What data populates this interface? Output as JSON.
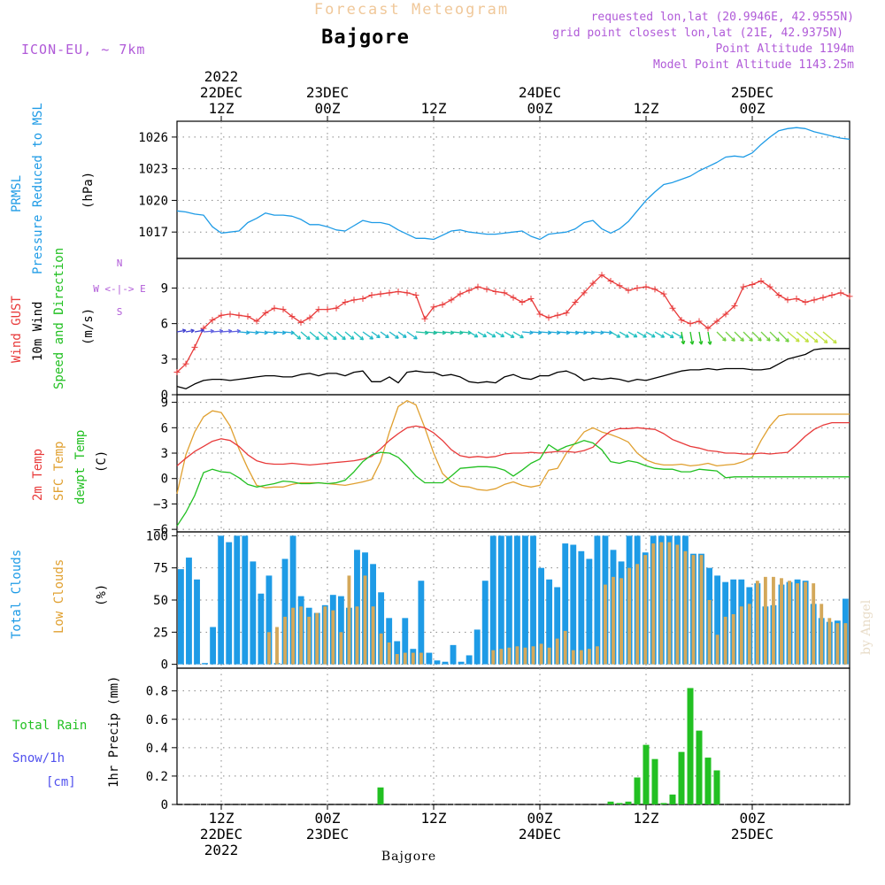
{
  "header": {
    "title_ghost": "Forecast Meteogram",
    "station": "Bajgore",
    "model": "ICON-EU, ~ 7km",
    "requested": "requested lon,lat (20.9946E, 42.9555N)",
    "grid_point": "grid point closest lon,lat (21E, 42.9375N)",
    "point_alt": "Point Altitude 1194m",
    "model_alt": "Model Point Altitude 1143.25m",
    "footer_station": "Bajgore",
    "credit": "by Angel"
  },
  "time_axis": {
    "top_labels": [
      {
        "t": 0,
        "lines": [
          "2022",
          "22DEC",
          "12Z"
        ]
      },
      {
        "t": 12,
        "lines": [
          "23DEC",
          "00Z"
        ]
      },
      {
        "t": 24,
        "lines": [
          "12Z"
        ]
      },
      {
        "t": 36,
        "lines": [
          "24DEC",
          "00Z"
        ]
      },
      {
        "t": 48,
        "lines": [
          "12Z"
        ]
      },
      {
        "t": 60,
        "lines": [
          "25DEC",
          "00Z"
        ]
      }
    ],
    "bottom_labels": [
      {
        "t": 0,
        "lines": [
          "12Z",
          "22DEC",
          "2022"
        ]
      },
      {
        "t": 12,
        "lines": [
          "00Z",
          "23DEC"
        ]
      },
      {
        "t": 24,
        "lines": [
          "12Z"
        ]
      },
      {
        "t": 36,
        "lines": [
          "00Z",
          "24DEC"
        ]
      },
      {
        "t": 48,
        "lines": [
          "12Z"
        ]
      },
      {
        "t": 60,
        "lines": [
          "00Z",
          "25DEC"
        ]
      }
    ],
    "range_hours": [
      -5,
      71
    ]
  },
  "labels": {
    "prmsl": [
      "PRMSL",
      "Pressure Reduced to MSL",
      "(hPa)"
    ],
    "wind": [
      "Wind GUST",
      "10m Wind",
      "Speed and Direction",
      "(m/s)"
    ],
    "compass": [
      "N",
      "W <-|-> E",
      "S"
    ],
    "temp": [
      "2m Temp",
      "SFC Temp",
      "dewpt Temp",
      "(C)"
    ],
    "cloud": [
      "Total Clouds",
      "Low Clouds",
      "(%)"
    ],
    "precip": [
      "Total  Rain",
      "Snow/1h",
      "[cm]",
      "1hr Precip (mm)"
    ]
  },
  "colors": {
    "pressure": "#1e9be6",
    "gust": "#e83a3a",
    "wind": "#000000",
    "temp2m": "#e83a3a",
    "sfc": "#e0a030",
    "dew": "#22c022",
    "total_cloud": "#1e9be6",
    "low_cloud": "#d4a85a",
    "rain": "#22c022",
    "snow": "#5050ee",
    "label_purple": "#b05ad8",
    "ghost": "#f0c89a",
    "grid": "#888888"
  },
  "chart_data": [
    {
      "type": "line",
      "id": "pressure",
      "ylabel": "(hPa)",
      "ylim": [
        1014.5,
        1027.5
      ],
      "yticks": [
        1017,
        1020,
        1023,
        1026
      ],
      "x": [
        -5,
        -4,
        -3,
        -2,
        -1,
        0,
        1,
        2,
        3,
        4,
        5,
        6,
        7,
        8,
        9,
        10,
        11,
        12,
        13,
        14,
        15,
        16,
        17,
        18,
        19,
        20,
        21,
        22,
        23,
        24,
        25,
        26,
        27,
        28,
        29,
        30,
        31,
        32,
        33,
        34,
        35,
        36,
        37,
        38,
        39,
        40,
        41,
        42,
        43,
        44,
        45,
        46,
        47,
        48,
        49,
        50,
        51,
        52,
        53,
        54,
        55,
        56,
        57,
        58,
        59,
        60,
        61,
        62,
        63,
        64,
        65,
        66,
        67,
        68,
        69,
        70,
        71
      ],
      "y": [
        1019.0,
        1018.9,
        1018.7,
        1018.6,
        1017.5,
        1016.9,
        1017.0,
        1017.1,
        1017.9,
        1018.3,
        1018.8,
        1018.6,
        1018.6,
        1018.5,
        1018.2,
        1017.7,
        1017.7,
        1017.5,
        1017.2,
        1017.1,
        1017.6,
        1018.1,
        1017.9,
        1017.9,
        1017.7,
        1017.2,
        1016.8,
        1016.4,
        1016.4,
        1016.3,
        1016.7,
        1017.1,
        1017.2,
        1017.0,
        1016.9,
        1016.8,
        1016.8,
        1016.9,
        1017.0,
        1017.1,
        1016.6,
        1016.3,
        1016.8,
        1016.9,
        1017.0,
        1017.3,
        1017.9,
        1018.1,
        1017.3,
        1016.9,
        1017.3,
        1018.0,
        1019.0,
        1020.0,
        1020.8,
        1021.5,
        1021.7,
        1022.0,
        1022.3,
        1022.8,
        1023.2,
        1023.6,
        1024.1,
        1024.2,
        1024.1,
        1024.5,
        1025.3,
        1026.0,
        1026.6,
        1026.8,
        1026.9,
        1026.8,
        1026.5,
        1026.3,
        1026.1,
        1025.9,
        1025.8
      ]
    },
    {
      "type": "line",
      "id": "wind",
      "ylabel": "(m/s)",
      "ylim": [
        0,
        11.5
      ],
      "yticks": [
        0,
        3,
        6,
        9
      ],
      "series": [
        {
          "name": "Wind GUST",
          "values": [
            1.9,
            2.6,
            4.0,
            5.6,
            6.3,
            6.7,
            6.8,
            6.7,
            6.6,
            6.2,
            6.9,
            7.3,
            7.2,
            6.6,
            6.1,
            6.5,
            7.2,
            7.2,
            7.3,
            7.8,
            8.0,
            8.1,
            8.4,
            8.5,
            8.6,
            8.7,
            8.6,
            8.4,
            6.4,
            7.4,
            7.6,
            8.0,
            8.5,
            8.8,
            9.1,
            8.9,
            8.7,
            8.6,
            8.2,
            7.8,
            8.1,
            6.8,
            6.5,
            6.7,
            6.9,
            7.8,
            8.6,
            9.4,
            10.1,
            9.6,
            9.2,
            8.8,
            9.0,
            9.1,
            8.9,
            8.5,
            7.3,
            6.3,
            6.0,
            6.2,
            5.6,
            6.2,
            6.8,
            7.5,
            9.1,
            9.3,
            9.6,
            9.1,
            8.4,
            8.0,
            8.1,
            7.8,
            8.0,
            8.2,
            8.4,
            8.6,
            8.3
          ]
        },
        {
          "name": "10m Wind",
          "values": [
            0.7,
            0.5,
            0.9,
            1.2,
            1.3,
            1.3,
            1.2,
            1.3,
            1.4,
            1.5,
            1.6,
            1.6,
            1.5,
            1.5,
            1.7,
            1.8,
            1.6,
            1.8,
            1.8,
            1.6,
            1.9,
            2.0,
            1.1,
            1.1,
            1.5,
            1.0,
            1.9,
            2.0,
            1.9,
            1.9,
            1.6,
            1.7,
            1.5,
            1.1,
            1.0,
            1.1,
            1.0,
            1.5,
            1.7,
            1.4,
            1.3,
            1.6,
            1.6,
            1.9,
            2.0,
            1.7,
            1.2,
            1.4,
            1.3,
            1.4,
            1.3,
            1.1,
            1.3,
            1.2,
            1.4,
            1.6,
            1.8,
            2.0,
            2.1,
            2.1,
            2.2,
            2.1,
            2.2,
            2.2,
            2.2,
            2.1,
            2.1,
            2.2,
            2.6,
            3.0,
            3.2,
            3.4,
            3.8,
            3.9,
            3.9,
            3.9,
            3.9
          ]
        }
      ],
      "arrow_level": 5.3
    },
    {
      "type": "line",
      "id": "temperature",
      "ylabel": "(C)",
      "ylim": [
        -6.3,
        9.9
      ],
      "yticks": [
        -6,
        -3,
        0,
        3,
        6,
        9
      ],
      "series": [
        {
          "name": "2m Temp",
          "values": [
            1.5,
            2.4,
            3.2,
            3.8,
            4.4,
            4.7,
            4.5,
            3.8,
            2.8,
            2.1,
            1.8,
            1.7,
            1.7,
            1.8,
            1.7,
            1.6,
            1.7,
            1.8,
            1.9,
            2.0,
            2.1,
            2.3,
            2.6,
            3.5,
            4.5,
            5.3,
            6.0,
            6.2,
            6.0,
            5.4,
            4.5,
            3.4,
            2.7,
            2.5,
            2.6,
            2.5,
            2.6,
            2.9,
            3.0,
            3.0,
            3.1,
            3.0,
            3.1,
            3.2,
            3.2,
            3.1,
            3.3,
            3.7,
            4.8,
            5.6,
            5.9,
            5.9,
            6.0,
            5.9,
            5.8,
            5.3,
            4.6,
            4.2,
            3.8,
            3.6,
            3.3,
            3.2,
            3.0,
            3.0,
            2.9,
            2.9,
            3.0,
            2.9,
            3.0,
            3.1,
            4.0,
            5.0,
            5.8,
            6.3,
            6.6,
            6.6,
            6.6
          ]
        },
        {
          "name": "SFC Temp",
          "values": [
            -1.8,
            2.8,
            5.5,
            7.3,
            8.0,
            7.8,
            6.2,
            3.5,
            1.2,
            -0.8,
            -1.1,
            -1.0,
            -1.0,
            -0.7,
            -0.5,
            -0.5,
            -0.5,
            -0.6,
            -0.7,
            -0.8,
            -0.6,
            -0.4,
            -0.1,
            2.0,
            5.5,
            8.5,
            9.2,
            8.7,
            6.0,
            3.0,
            0.6,
            -0.4,
            -0.9,
            -1.0,
            -1.3,
            -1.4,
            -1.2,
            -0.7,
            -0.4,
            -0.8,
            -1.0,
            -0.8,
            1.0,
            1.2,
            3.0,
            4.2,
            5.5,
            6.0,
            5.5,
            5.2,
            4.8,
            4.3,
            3.0,
            2.2,
            1.8,
            1.6,
            1.6,
            1.7,
            1.5,
            1.6,
            1.8,
            1.5,
            1.6,
            1.7,
            2.0,
            2.5,
            4.5,
            6.2,
            7.4,
            7.6,
            7.6,
            7.6,
            7.6,
            7.6,
            7.6,
            7.6,
            7.6
          ]
        },
        {
          "name": "dewpt Temp",
          "values": [
            -5.6,
            -4.0,
            -2.0,
            0.7,
            1.1,
            0.8,
            0.7,
            0.1,
            -0.7,
            -1.0,
            -0.8,
            -0.6,
            -0.3,
            -0.4,
            -0.6,
            -0.6,
            -0.5,
            -0.6,
            -0.5,
            -0.2,
            0.8,
            2.0,
            2.8,
            3.1,
            3.0,
            2.5,
            1.5,
            0.3,
            -0.5,
            -0.5,
            -0.5,
            0.3,
            1.2,
            1.3,
            1.4,
            1.4,
            1.3,
            1.0,
            0.3,
            1.0,
            1.8,
            2.3,
            4.0,
            3.3,
            3.8,
            4.1,
            4.5,
            4.2,
            3.4,
            2.0,
            1.8,
            2.1,
            1.9,
            1.5,
            1.2,
            1.1,
            1.1,
            0.8,
            0.8,
            1.1,
            1.0,
            0.9,
            0.1,
            0.2,
            0.2,
            0.2,
            0.2,
            0.2,
            0.2,
            0.2,
            0.2,
            0.2,
            0.2,
            0.2,
            0.2,
            0.2,
            0.2
          ]
        }
      ]
    },
    {
      "type": "bar",
      "id": "clouds",
      "ylabel": "(%)",
      "ylim": [
        -3,
        103
      ],
      "yticks": [
        0,
        25,
        50,
        75,
        100
      ],
      "series": [
        {
          "name": "Total Clouds",
          "values": [
            74,
            83,
            66,
            1,
            29,
            100,
            95,
            100,
            100,
            80,
            55,
            69,
            1,
            82,
            100,
            53,
            44,
            40,
            46,
            54,
            53,
            44,
            89,
            87,
            78,
            56,
            36,
            18,
            36,
            12,
            65,
            9,
            3,
            2,
            15,
            2,
            7,
            27,
            65,
            100,
            100,
            100,
            100,
            100,
            100,
            75,
            66,
            60,
            94,
            93,
            88,
            82,
            100,
            100,
            89,
            80,
            100,
            100,
            87,
            100,
            100,
            100,
            100,
            100,
            86,
            86,
            75,
            69,
            64,
            66,
            66,
            60,
            63,
            45,
            46,
            62,
            64,
            66,
            65,
            47,
            36,
            33,
            34,
            51
          ]
        },
        {
          "name": "Low Clouds",
          "values": [
            0,
            0,
            0,
            0,
            0,
            0,
            0,
            0,
            0,
            0,
            0,
            25,
            29,
            37,
            44,
            45,
            37,
            40,
            45,
            42,
            25,
            69,
            45,
            69,
            45,
            24,
            17,
            8,
            9,
            9,
            9,
            0,
            0,
            0,
            0,
            0,
            0,
            0,
            0,
            11,
            12,
            13,
            14,
            13,
            14,
            16,
            13,
            20,
            26,
            11,
            11,
            12,
            14,
            62,
            68,
            67,
            75,
            78,
            85,
            94,
            95,
            95,
            93,
            88,
            85,
            85,
            50,
            23,
            37,
            39,
            45,
            47,
            65,
            68,
            68,
            67,
            65,
            63,
            64,
            63,
            47,
            36,
            32,
            32
          ]
        }
      ]
    },
    {
      "type": "bar",
      "id": "precip",
      "ylabel": "1hr Precip (mm)",
      "ylim": [
        0,
        0.96
      ],
      "yticks": [
        0,
        0.2,
        0.4,
        0.6,
        0.8
      ],
      "series": [
        {
          "name": "Total Rain",
          "bars": [
            [
              18,
              0.12
            ],
            [
              44,
              0.02
            ],
            [
              45,
              0.01
            ],
            [
              46,
              0.02
            ],
            [
              47,
              0.19
            ],
            [
              48,
              0.42
            ],
            [
              49,
              0.32
            ],
            [
              50,
              0.01
            ],
            [
              51,
              0.07
            ],
            [
              52,
              0.37
            ],
            [
              53,
              0.82
            ],
            [
              54,
              0.52
            ],
            [
              55,
              0.33
            ],
            [
              56,
              0.24
            ]
          ]
        },
        {
          "name": "Snow/1h",
          "bars": []
        }
      ]
    }
  ]
}
